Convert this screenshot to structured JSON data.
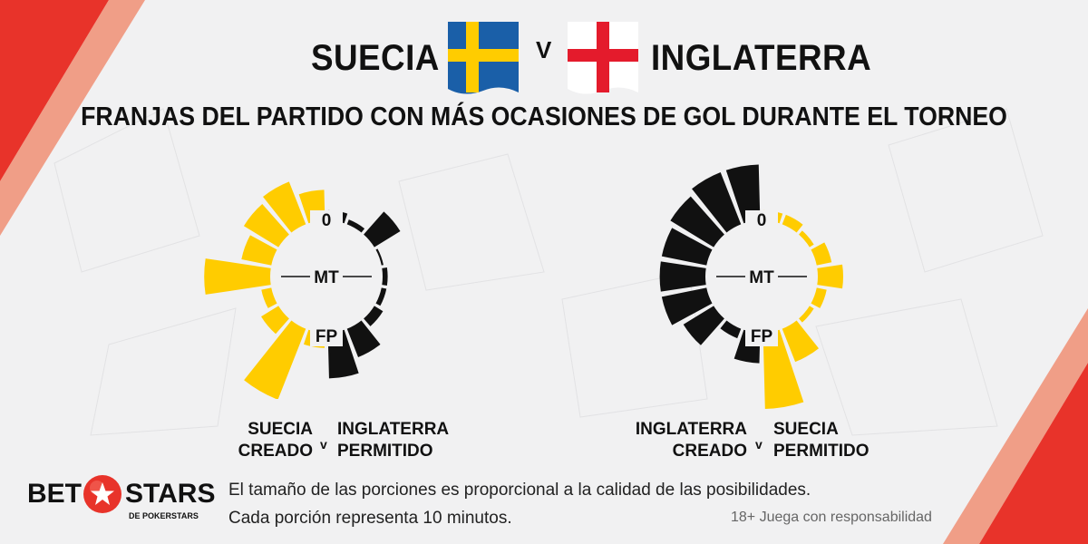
{
  "header": {
    "team_left": "SUECIA",
    "vs": "V",
    "team_right": "INGLATERRA",
    "subtitle": "FRANJAS DEL PARTIDO CON MÁS OCASIONES DE GOL DURANTE EL TORNEO"
  },
  "colors": {
    "sweden": "#ffcc00",
    "england": "#111111",
    "background": "#f1f1f2",
    "accent": "#e8332a"
  },
  "chart_data": [
    {
      "type": "radial_bar",
      "center_labels": {
        "start": "0",
        "half": "MT",
        "end": "FP"
      },
      "slice_minutes": 10,
      "left_side": {
        "team": "SUECIA",
        "status": "CREADO",
        "color": "#ffcc00",
        "slices": [
          "0-10",
          "10-20",
          "20-30",
          "30-40",
          "40-50",
          "50-60",
          "60-70",
          "70-80",
          "80-90"
        ],
        "values": [
          6,
          9,
          8,
          6,
          13,
          2,
          4,
          15,
          3
        ]
      },
      "right_side": {
        "team": "INGLATERRA",
        "status": "PERMITIDO",
        "color": "#111111",
        "values": [
          2,
          1,
          6,
          0,
          1,
          1,
          2,
          6,
          9
        ]
      }
    },
    {
      "type": "radial_bar",
      "center_labels": {
        "start": "0",
        "half": "MT",
        "end": "FP"
      },
      "slice_minutes": 10,
      "left_side": {
        "team": "INGLATERRA",
        "status": "CREADO",
        "color": "#111111",
        "values": [
          11,
          11,
          10,
          9,
          9,
          9,
          7,
          2,
          6
        ]
      },
      "right_side": {
        "team": "SUECIA",
        "status": "PERMITIDO",
        "color": "#ffcc00",
        "values": [
          2,
          2,
          1,
          3,
          5,
          2,
          1,
          7,
          15
        ]
      }
    }
  ],
  "legend": {
    "left": {
      "team_a": "SUECIA",
      "state_a": "CREADO",
      "v": "v",
      "team_b": "INGLATERRA",
      "state_b": "PERMITIDO"
    },
    "right": {
      "team_a": "INGLATERRA",
      "state_a": "CREADO",
      "v": "v",
      "team_b": "SUECIA",
      "state_b": "PERMITIDO"
    }
  },
  "footer": {
    "logo_bet": "BET",
    "logo_stars": "STARS",
    "logo_sub": "DE POKERSTARS",
    "note1": "El tamaño de las porciones es proporcional a la calidad de las posibilidades.",
    "note2": "Cada porción representa 10 minutos.",
    "responsibility": "18+ Juega con responsabilidad"
  }
}
